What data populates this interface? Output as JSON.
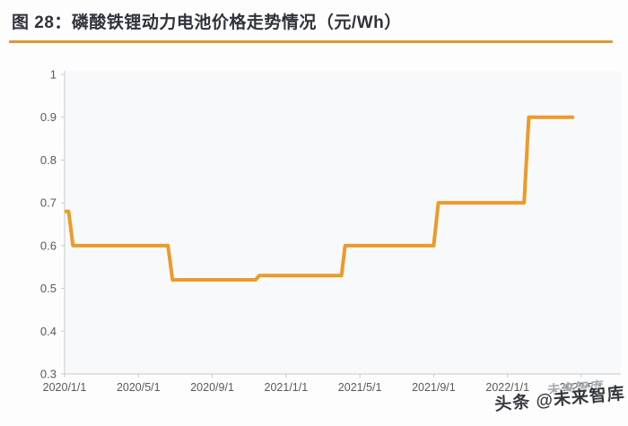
{
  "figure": {
    "title": "图 28：磷酸铁锂动力电池价格走势情况（元/Wh）"
  },
  "watermarks": {
    "gray": "未来智库",
    "dark": "头条 @未来智库"
  },
  "colors": {
    "line": "#EC9A28",
    "title_text": "#30333B",
    "title_rule": "#D89A36",
    "axis": "#C6CACF",
    "tick_label": "#595959",
    "plot_bg": "#F8F9FB",
    "watermark_gray": "#A8ACB1",
    "watermark_dark": "#35383E"
  },
  "chart_data": {
    "type": "line",
    "subtype": "step",
    "title": "磷酸铁锂动力电池价格走势情况",
    "unit": "元/Wh",
    "xlabel": "",
    "ylabel": "",
    "ylim": [
      0.3,
      1
    ],
    "grid": false,
    "legend": "none",
    "y_ticks": [
      "1",
      "0.9",
      "0.8",
      "0.7",
      "0.6",
      "0.5",
      "0.4",
      "0.3"
    ],
    "y_tick_values": [
      1,
      0.9,
      0.8,
      0.7,
      0.6,
      0.5,
      0.4,
      0.3
    ],
    "x_ticks": [
      "2020/1/1",
      "2020/5/1",
      "2020/9/1",
      "2021/1/1",
      "2021/5/1",
      "2021/9/1",
      "2022/1/1",
      "2022/5/1"
    ],
    "x_tick_months": [
      0,
      4,
      8,
      12,
      16,
      20,
      24,
      28
    ],
    "series": [
      {
        "name": "磷酸铁锂动力电池价格（元/Wh）",
        "color": "#EC9A28",
        "points_month_value": [
          [
            0,
            0.68
          ],
          [
            0.22,
            0.68
          ],
          [
            0.45,
            0.6
          ],
          [
            5.6,
            0.6
          ],
          [
            5.85,
            0.52
          ],
          [
            10.35,
            0.52
          ],
          [
            10.55,
            0.53
          ],
          [
            15.0,
            0.53
          ],
          [
            15.2,
            0.6
          ],
          [
            20.0,
            0.6
          ],
          [
            20.25,
            0.7
          ],
          [
            24.9,
            0.7
          ],
          [
            25.15,
            0.9
          ],
          [
            27.6,
            0.9
          ]
        ],
        "price_steps": [
          {
            "period": "2020/1",
            "price": 0.68
          },
          {
            "period": "2020/1 - 2020/6",
            "price": 0.6
          },
          {
            "period": "2020/7 - 2020/11",
            "price": 0.52
          },
          {
            "period": "2020/11 - 2021/4",
            "price": 0.53
          },
          {
            "period": "2021/4 - 2021/9",
            "price": 0.6
          },
          {
            "period": "2021/9 - 2022/2",
            "price": 0.7
          },
          {
            "period": "2022/2 - 2022/5",
            "price": 0.9
          }
        ]
      }
    ]
  }
}
